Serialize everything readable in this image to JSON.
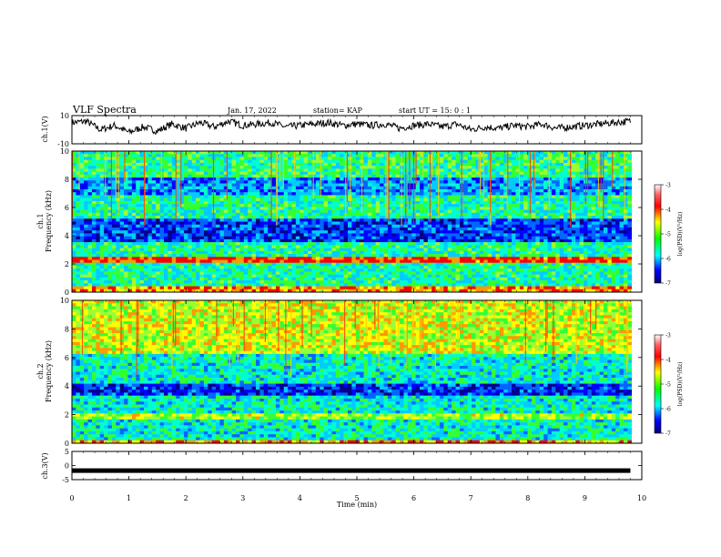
{
  "header": {
    "title": "VLF Spectra",
    "date": "Jan. 17, 2022",
    "station": "station= KAP",
    "start": "start UT =  15: 0  : 1"
  },
  "chart_data": [
    {
      "type": "line",
      "panel": "ch1-waveform",
      "ylabel": "ch.1(V)",
      "ylim": [
        -10,
        10
      ],
      "yticks": [
        10,
        -10
      ],
      "xlim": [
        0,
        10
      ],
      "series": [
        {
          "x": [
            0,
            0.25,
            0.5,
            0.75,
            1.0,
            1.25,
            1.5,
            1.75,
            2.0,
            2.25,
            2.5,
            2.75,
            3.0,
            3.25,
            3.5,
            3.75,
            4.0,
            4.25,
            4.5,
            4.75,
            5.0,
            5.25,
            5.5,
            5.75,
            6.0,
            6.25,
            6.5,
            6.75,
            7.0,
            7.25,
            7.5,
            7.75,
            8.0,
            8.25,
            8.5,
            8.75,
            9.0,
            9.25,
            9.5,
            9.8
          ],
          "values": [
            5,
            6,
            0,
            3,
            -2,
            2,
            -1,
            4,
            1,
            5,
            2,
            6,
            3,
            4,
            5,
            2,
            3,
            4,
            5,
            3,
            4,
            3,
            4,
            1,
            3,
            4,
            2,
            4,
            0,
            2,
            1,
            3,
            2,
            4,
            1,
            2,
            3,
            4,
            5,
            6
          ]
        }
      ]
    },
    {
      "type": "heatmap",
      "panel": "ch1-spectrogram",
      "ylabel": "ch.1\nFrequency (kHz)",
      "ylim": [
        0,
        10
      ],
      "yticks": [
        0,
        2,
        4,
        6,
        8,
        10
      ],
      "xlim": [
        0,
        10
      ],
      "colorbar": {
        "label": "log(PSD)(V²/Hz)",
        "ticks": [
          -3,
          -4,
          -5,
          -6,
          -7
        ],
        "range": [
          -7,
          -3
        ]
      }
    },
    {
      "type": "heatmap",
      "panel": "ch2-spectrogram",
      "ylabel": "ch.2\nFrequency (kHz)",
      "ylim": [
        0,
        10
      ],
      "yticks": [
        0,
        2,
        4,
        6,
        8,
        10
      ],
      "xlim": [
        0,
        10
      ],
      "colorbar": {
        "label": "log(PSD)(V²/Hz)",
        "ticks": [
          -3,
          -4,
          -5,
          -6,
          -7
        ],
        "range": [
          -7,
          -3
        ]
      }
    },
    {
      "type": "line",
      "panel": "ch3-signal",
      "ylabel": "ch.3(V)",
      "ylim": [
        -5,
        5
      ],
      "yticks": [
        5,
        0,
        -5
      ],
      "xlim": [
        0,
        10
      ],
      "xticks": [
        0,
        1,
        2,
        3,
        4,
        5,
        6,
        7,
        8,
        9,
        10
      ],
      "xlabel": "Time (min)",
      "series": [
        {
          "x": [
            0,
            9.8
          ],
          "values": [
            -1.8,
            -1.8
          ]
        }
      ]
    }
  ]
}
